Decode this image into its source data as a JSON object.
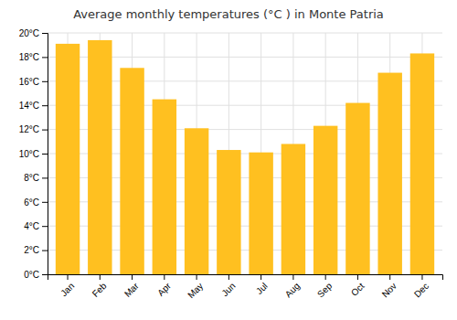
{
  "chart_data": {
    "type": "bar",
    "title": "Average monthly temperatures (°C ) in Monte Patria",
    "categories": [
      "Jan",
      "Feb",
      "Mar",
      "Apr",
      "May",
      "Jun",
      "Jul",
      "Aug",
      "Sep",
      "Oct",
      "Nov",
      "Dec"
    ],
    "values": [
      19.1,
      19.4,
      17.1,
      14.5,
      12.1,
      10.3,
      10.1,
      10.8,
      12.3,
      14.2,
      16.7,
      18.3
    ],
    "color": "#FFC020",
    "ylim": [
      0,
      20
    ],
    "yticks": [
      {
        "value": 0,
        "label": "0°C"
      },
      {
        "value": 2,
        "label": "2°C"
      },
      {
        "value": 4,
        "label": "4°C"
      },
      {
        "value": 6,
        "label": "6°C"
      },
      {
        "value": 8,
        "label": "8°C"
      },
      {
        "value": 10,
        "label": "10°C"
      },
      {
        "value": 12,
        "label": "12°C"
      },
      {
        "value": 14,
        "label": "14°C"
      },
      {
        "value": 16,
        "label": "16°C"
      },
      {
        "value": 18,
        "label": "18°C"
      },
      {
        "value": 20,
        "label": "20°C"
      }
    ],
    "grid": true
  }
}
